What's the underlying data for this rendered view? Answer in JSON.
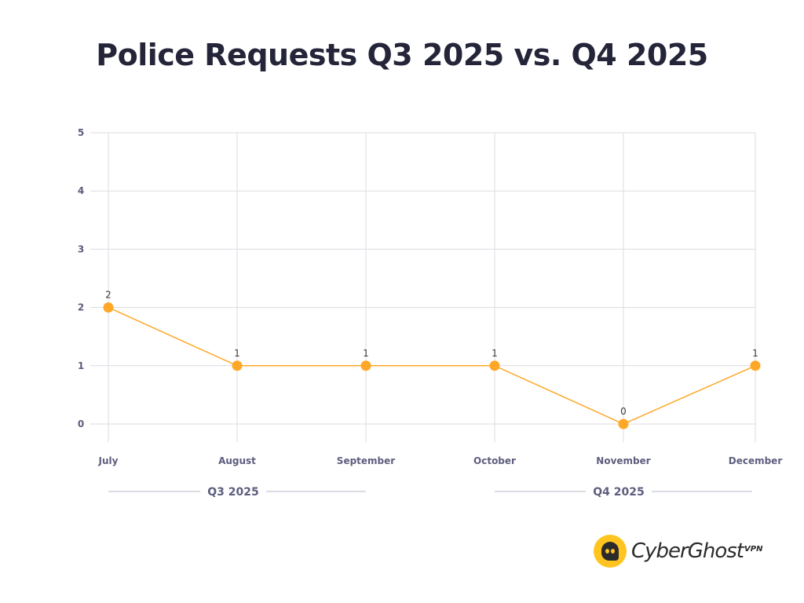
{
  "chart_data": {
    "type": "line",
    "title": "Police Requests Q3 2025 vs. Q4 2025",
    "xlabel": "",
    "ylabel": "",
    "categories": [
      "July",
      "August",
      "September",
      "October",
      "November",
      "December"
    ],
    "series": [
      {
        "name": "Police Requests",
        "values": [
          2,
          1,
          1,
          1,
          0,
          1
        ],
        "color": "#ffa726"
      }
    ],
    "data_labels": [
      "2",
      "1",
      "1",
      "1",
      "0",
      "1"
    ],
    "ylim": [
      0,
      5
    ],
    "yticks": [
      "0",
      "1",
      "2",
      "3",
      "4",
      "5"
    ],
    "grid": true,
    "legend": "none",
    "groups": [
      {
        "label": "Q3 2025",
        "categories": [
          "July",
          "August",
          "September"
        ]
      },
      {
        "label": "Q4 2025",
        "categories": [
          "October",
          "November",
          "December"
        ]
      }
    ]
  },
  "colors": {
    "title": "#25253a",
    "axis_text": "#5d5d7e",
    "grid": "#dcdce3",
    "line": "#ffa726",
    "brand_yellow": "#ffc41f"
  },
  "branding": {
    "logo_text": "CyberGhost",
    "logo_suffix": "VPN",
    "icon": "ghost-icon"
  }
}
